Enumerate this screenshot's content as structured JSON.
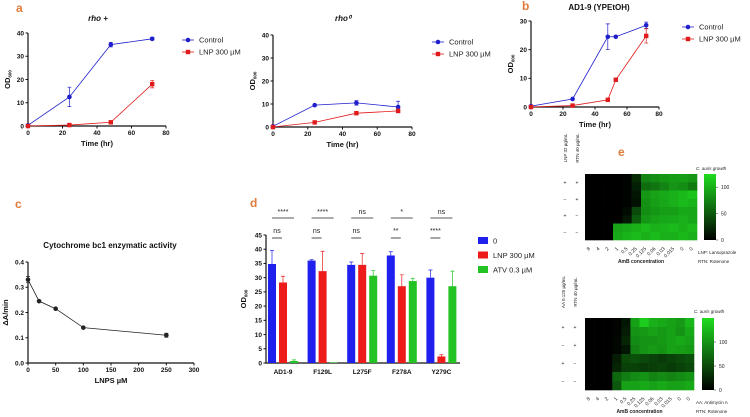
{
  "colors": {
    "control": "#1f1fcc",
    "lnp": "#e01b1b",
    "atv": "#22c322",
    "panel_label": "#e07b39",
    "line_black": "#222222"
  },
  "chart_data": [
    {
      "panel": "a",
      "type": "line",
      "title": "rho +",
      "xlabel": "Time (hr)",
      "ylabel": "OD",
      "ylabel_sub": "600",
      "xlim": [
        0,
        80
      ],
      "ylim": [
        0,
        40
      ],
      "xticks": [
        0,
        20,
        40,
        60,
        80
      ],
      "yticks": [
        0,
        10,
        20,
        30,
        40
      ],
      "legend": "right",
      "series": [
        {
          "name": "Control",
          "color": "#1f1fcc",
          "marker": "circle",
          "x": [
            0,
            24,
            48,
            72
          ],
          "y": [
            0.3,
            12.5,
            35,
            37.5
          ],
          "err": [
            0,
            4.2,
            1,
            0.5
          ]
        },
        {
          "name": "LNP 300 µM",
          "color": "#e01b1b",
          "marker": "square",
          "x": [
            0,
            24,
            48,
            72
          ],
          "y": [
            0,
            0.4,
            1.6,
            18
          ],
          "err": [
            0,
            0,
            0,
            1.6
          ]
        }
      ]
    },
    {
      "panel": "",
      "type": "line",
      "title": "rho⁰",
      "xlabel": "Time (hr)",
      "ylabel": "OD",
      "ylabel_sub": "600",
      "xlim": [
        0,
        80
      ],
      "ylim": [
        0,
        40
      ],
      "xticks": [
        0,
        20,
        40,
        60,
        80
      ],
      "yticks": [
        0,
        10,
        20,
        30,
        40
      ],
      "legend": "right",
      "series": [
        {
          "name": "Control",
          "color": "#1f1fcc",
          "marker": "circle",
          "x": [
            0,
            24,
            48,
            72
          ],
          "y": [
            0.3,
            9.5,
            10.5,
            8.7
          ],
          "err": [
            0,
            0,
            1,
            2.5
          ]
        },
        {
          "name": "LNP 300 µM",
          "color": "#e01b1b",
          "marker": "square",
          "x": [
            0,
            24,
            48,
            72
          ],
          "y": [
            0,
            2,
            6,
            7
          ],
          "err": [
            0,
            0,
            0.6,
            0.6
          ]
        }
      ]
    },
    {
      "panel": "b",
      "type": "line",
      "title": "AD1-9 (YPEtOH)",
      "xlabel": "Time (hr)",
      "ylabel": "OD",
      "ylabel_sub": "600",
      "xlim": [
        0,
        80
      ],
      "ylim": [
        0,
        30
      ],
      "xticks": [
        0,
        20,
        40,
        60,
        80
      ],
      "yticks": [
        0,
        10,
        20,
        30
      ],
      "legend": "right",
      "series": [
        {
          "name": "Control",
          "color": "#1f1fcc",
          "marker": "circle",
          "x": [
            0,
            26,
            48,
            53,
            72
          ],
          "y": [
            0.3,
            2.8,
            24.5,
            24.5,
            28.5
          ],
          "err": [
            0,
            0,
            4.5,
            0,
            1.1
          ]
        },
        {
          "name": "LNP 300 µM",
          "color": "#e01b1b",
          "marker": "square",
          "x": [
            0,
            26,
            48,
            53,
            72
          ],
          "y": [
            0,
            0.5,
            2.5,
            9.5,
            24.8
          ],
          "err": [
            0,
            0,
            0,
            0,
            2.5
          ]
        }
      ]
    },
    {
      "panel": "c",
      "type": "line",
      "title": "Cytochrome bc1 enzymatic activity",
      "xlabel": "LNPS µM",
      "ylabel": "ΔA/min",
      "ylabel_sub": "",
      "xlim": [
        0,
        300
      ],
      "ylim": [
        0,
        0.4
      ],
      "xticks": [
        0,
        50,
        100,
        150,
        200,
        250,
        300
      ],
      "yticks": [
        "0.0",
        "0.1",
        "0.2",
        "0.3",
        "0.4"
      ],
      "legend": "none",
      "series": [
        {
          "name": "",
          "color": "#222222",
          "marker": "circle",
          "x": [
            0,
            20,
            50,
            100,
            250
          ],
          "y": [
            0.33,
            0.245,
            0.215,
            0.14,
            0.11
          ],
          "err": [
            0.012,
            0,
            0,
            0,
            0.008
          ]
        }
      ]
    },
    {
      "panel": "d",
      "type": "bar",
      "ylabel": "OD",
      "ylabel_sub": "600",
      "ylim": [
        0,
        45
      ],
      "yticks": [
        0,
        5,
        10,
        15,
        20,
        25,
        30,
        35,
        40,
        45
      ],
      "legend": "right",
      "categories": [
        "AD1-9",
        "F129L",
        "L275F",
        "F278A",
        "Y279C"
      ],
      "series": [
        {
          "name": "0",
          "color": "#1f1fee",
          "values": [
            34.8,
            36,
            34.5,
            37.8,
            30
          ],
          "err": [
            4.7,
            0.3,
            1,
            1.3,
            2.7
          ]
        },
        {
          "name": "LNP 300 µM",
          "color": "#ee1b1b",
          "values": [
            28.3,
            32.3,
            34.5,
            27,
            2.3
          ],
          "err": [
            2.2,
            7,
            4,
            4,
            0.6
          ]
        },
        {
          "name": "ATV 0.3 µM",
          "color": "#22c322",
          "values": [
            0.7,
            0.2,
            30.7,
            28.8,
            27
          ],
          "err": [
            0.4,
            0,
            1.8,
            1,
            5.3
          ]
        }
      ],
      "significance_0_vs_atv": [
        "****",
        "****",
        "ns",
        "*",
        "ns"
      ],
      "significance_0_vs_lnp": [
        "ns",
        "ns",
        "ns",
        "**",
        "****"
      ]
    },
    {
      "panel": "e",
      "type": "heatmap",
      "colorbar_title": "C. auris growth",
      "colorbar_max": 125,
      "colorbar_ticks": [
        0,
        50,
        100
      ],
      "row_headers": [
        "LNP 32 µg/mL",
        "RTN 40 µg/mL"
      ],
      "row_labels": [
        [
          "+",
          "+"
        ],
        [
          "−",
          "+"
        ],
        [
          "+",
          "−"
        ],
        [
          "−",
          "−"
        ]
      ],
      "xlabel": "AmB concentration",
      "columns": [
        "8",
        "4",
        "2",
        "1",
        "0.5",
        "0.25",
        "0.125",
        "0.06",
        "0.03",
        "0.015",
        "0",
        "0"
      ],
      "values": [
        [
          0,
          0,
          0,
          0,
          2,
          25,
          75,
          80,
          85,
          88,
          90,
          85
        ],
        [
          0,
          0,
          0,
          0,
          2,
          18,
          62,
          66,
          75,
          84,
          80,
          70
        ],
        [
          0,
          0,
          0,
          0,
          2,
          12,
          85,
          92,
          96,
          100,
          105,
          112
        ],
        [
          0,
          0,
          0,
          0,
          2,
          10,
          82,
          90,
          95,
          100,
          106,
          102
        ],
        [
          0,
          0,
          0,
          0,
          6,
          42,
          80,
          86,
          90,
          90,
          96,
          95
        ],
        [
          0,
          0,
          0,
          0,
          12,
          52,
          86,
          92,
          95,
          96,
          100,
          95
        ],
        [
          0,
          0,
          0,
          92,
          96,
          100,
          106,
          100,
          102,
          106,
          100,
          106
        ],
        [
          0,
          0,
          0,
          96,
          102,
          106,
          100,
          106,
          100,
          100,
          105,
          100
        ]
      ],
      "footnotes": [
        "LNP: Lansoprazole",
        "RTN: Rotenone"
      ]
    },
    {
      "panel": "",
      "type": "heatmap",
      "colorbar_title": "C. auris growth",
      "colorbar_max": 150,
      "colorbar_ticks": [
        0,
        50,
        100
      ],
      "row_headers": [
        "AA 0.125 µg/mL",
        "RTN 40 µg/mL"
      ],
      "row_labels": [
        [
          "+",
          "+"
        ],
        [
          "−",
          "+"
        ],
        [
          "+",
          "−"
        ],
        [
          "−",
          "−"
        ]
      ],
      "xlabel": "AmB concentration",
      "columns": [
        "8",
        "4",
        "2",
        "1",
        "0.5",
        "0.25",
        "0.125",
        "0.06",
        "0.03",
        "0.015",
        "0",
        "0"
      ],
      "values": [
        [
          0,
          0,
          0,
          3,
          15,
          110,
          140,
          120,
          115,
          110,
          105,
          125
        ],
        [
          0,
          0,
          0,
          3,
          20,
          100,
          105,
          110,
          105,
          110,
          100,
          115
        ],
        [
          0,
          0,
          0,
          4,
          25,
          95,
          100,
          100,
          105,
          110,
          115,
          110
        ],
        [
          0,
          0,
          0,
          4,
          15,
          90,
          100,
          105,
          100,
          110,
          108,
          105
        ],
        [
          0,
          0,
          0,
          20,
          50,
          55,
          50,
          45,
          40,
          45,
          50,
          55
        ],
        [
          0,
          0,
          0,
          25,
          45,
          45,
          40,
          42,
          45,
          40,
          45,
          50
        ],
        [
          0,
          0,
          0,
          70,
          85,
          95,
          100,
          90,
          95,
          90,
          95,
          100
        ],
        [
          0,
          0,
          0,
          60,
          110,
          110,
          115,
          110,
          115,
          110,
          110,
          115
        ]
      ],
      "footnotes": [
        "AA: Antimycin A",
        "RTN: Rotenone"
      ]
    }
  ]
}
